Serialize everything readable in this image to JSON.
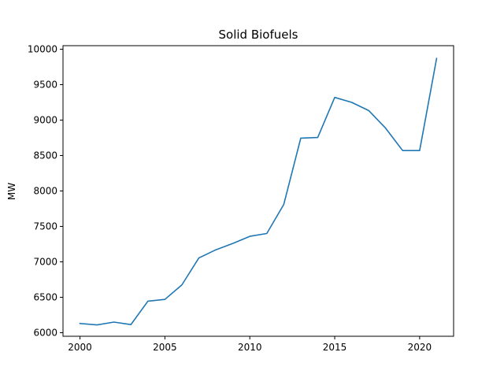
{
  "chart_data": {
    "type": "line",
    "title": "Solid Biofuels",
    "xlabel": "",
    "ylabel": "MW",
    "x": [
      2000,
      2001,
      2002,
      2003,
      2004,
      2005,
      2006,
      2007,
      2008,
      2009,
      2010,
      2011,
      2012,
      2013,
      2014,
      2015,
      2016,
      2017,
      2018,
      2019,
      2020,
      2021
    ],
    "series": [
      {
        "name": "",
        "values": [
          6130,
          6110,
          6150,
          6115,
          6445,
          6470,
          6675,
          7055,
          7170,
          7260,
          7360,
          7400,
          7810,
          8745,
          8755,
          9320,
          9250,
          9135,
          8885,
          8570,
          8570,
          9870
        ],
        "color": "#1f77b4"
      }
    ],
    "xlim": [
      1999,
      2022
    ],
    "ylim": [
      5950,
      10050
    ],
    "xticks": [
      2000,
      2005,
      2010,
      2015,
      2020
    ],
    "yticks": [
      6000,
      6500,
      7000,
      7500,
      8000,
      8500,
      9000,
      9500,
      10000
    ],
    "grid": false,
    "legend": "none"
  }
}
